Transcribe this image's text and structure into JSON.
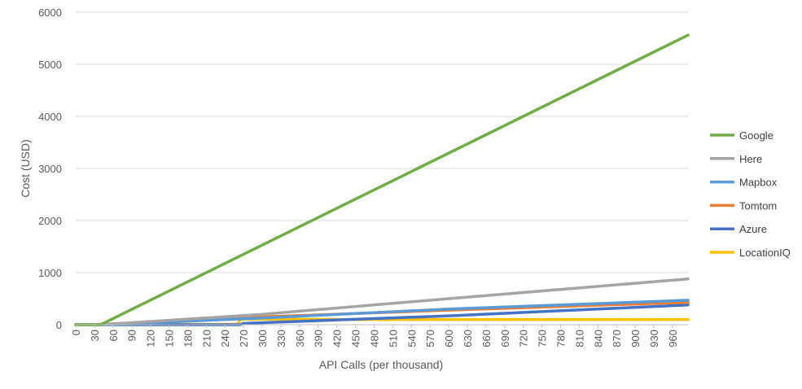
{
  "chart_data": {
    "type": "line",
    "title": "",
    "xlabel": "API Calls (per thousand)",
    "ylabel": "Cost (USD)",
    "xlim": [
      0,
      985
    ],
    "ylim": [
      0,
      6000
    ],
    "y_ticks": [
      0,
      1000,
      2000,
      3000,
      4000,
      5000,
      6000
    ],
    "x_ticks": [
      0,
      30,
      60,
      90,
      120,
      150,
      180,
      210,
      240,
      270,
      300,
      330,
      360,
      390,
      420,
      450,
      480,
      510,
      540,
      570,
      600,
      630,
      660,
      690,
      720,
      750,
      780,
      810,
      840,
      870,
      900,
      930,
      960
    ],
    "grid": "horizontal",
    "legend_position": "right",
    "series": [
      {
        "name": "Google",
        "color": "#70ad47",
        "points": [
          [
            0,
            0
          ],
          [
            40,
            0
          ],
          [
            985,
            5560
          ]
        ]
      },
      {
        "name": "Here",
        "color": "#a5a5a5",
        "points": [
          [
            0,
            0
          ],
          [
            40,
            0
          ],
          [
            300,
            200
          ],
          [
            600,
            500
          ],
          [
            985,
            880
          ]
        ]
      },
      {
        "name": "Mapbox",
        "color": "#5b9bd5",
        "points": [
          [
            0,
            0
          ],
          [
            50,
            0
          ],
          [
            300,
            130
          ],
          [
            600,
            300
          ],
          [
            985,
            470
          ]
        ]
      },
      {
        "name": "Tomtom",
        "color": "#ed7d31",
        "points": [
          [
            0,
            0
          ],
          [
            25,
            0
          ],
          [
            120,
            45
          ],
          [
            300,
            150
          ],
          [
            600,
            280
          ],
          [
            985,
            430
          ]
        ]
      },
      {
        "name": "Azure",
        "color": "#4472c4",
        "points": [
          [
            0,
            0
          ],
          [
            265,
            0
          ],
          [
            270,
            25
          ],
          [
            600,
            170
          ],
          [
            985,
            380
          ]
        ]
      },
      {
        "name": "LocationIQ",
        "color": "#ffc000",
        "points": [
          [
            0,
            0
          ],
          [
            260,
            10
          ],
          [
            265,
            100
          ],
          [
            270,
            110
          ],
          [
            420,
            100
          ],
          [
            985,
            100
          ]
        ]
      }
    ]
  }
}
